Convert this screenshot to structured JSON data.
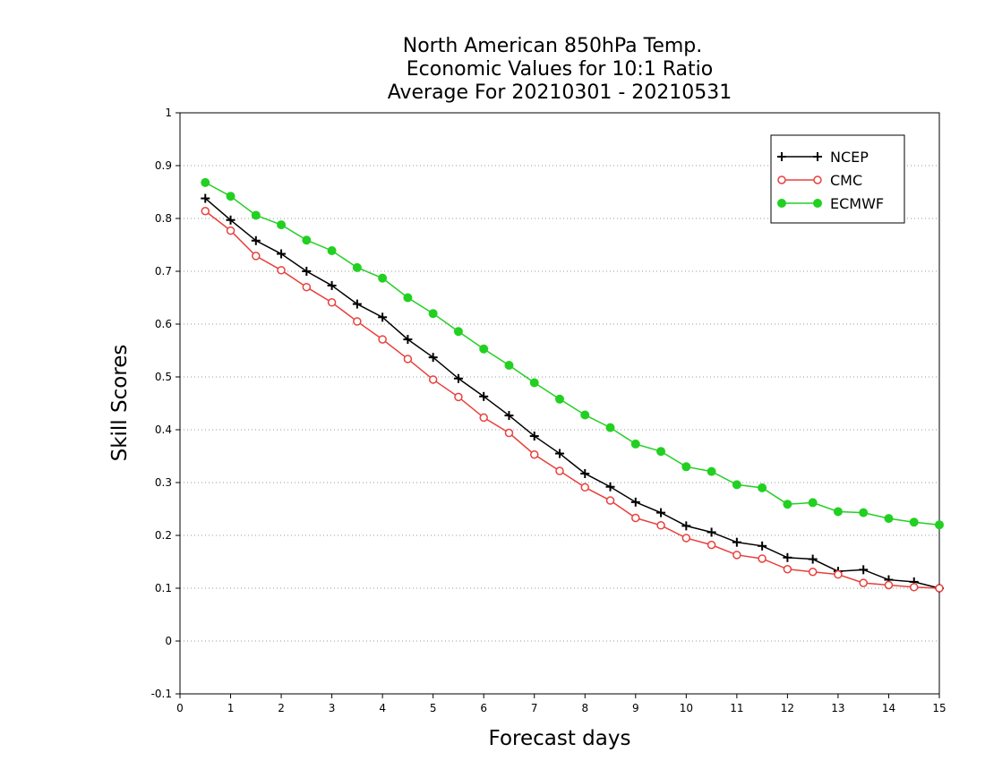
{
  "chart_data": {
    "type": "line",
    "title_lines": [
      "North American 850hPa Temp.",
      "Economic Values for 10:1 Ratio",
      "Average For 20210301 - 20210531"
    ],
    "xlabel": "Forecast days",
    "ylabel": "Skill Scores",
    "xlim": [
      0,
      15
    ],
    "ylim": [
      -0.1,
      1
    ],
    "xticks": [
      0,
      1,
      2,
      3,
      4,
      5,
      6,
      7,
      8,
      9,
      10,
      11,
      12,
      13,
      14,
      15
    ],
    "yticks": [
      -0.1,
      0,
      0.1,
      0.2,
      0.3,
      0.4,
      0.5,
      0.6,
      0.7,
      0.8,
      0.9,
      1
    ],
    "ytick_labels": [
      "-0.1",
      "0",
      "0.1",
      "0.2",
      "0.3",
      "0.4",
      "0.5",
      "0.6",
      "0.7",
      "0.8",
      "0.9",
      "1"
    ],
    "grid": "horizontal dotted",
    "legend_position": "top-right",
    "x": [
      0.5,
      1,
      1.5,
      2,
      2.5,
      3,
      3.5,
      4,
      4.5,
      5,
      5.5,
      6,
      6.5,
      7,
      7.5,
      8,
      8.5,
      9,
      9.5,
      10,
      10.5,
      11,
      11.5,
      12,
      12.5,
      13,
      13.5,
      14,
      14.5,
      15
    ],
    "series": [
      {
        "name": "NCEP",
        "color": "#000000",
        "marker": "plus",
        "values": [
          0.838,
          0.797,
          0.758,
          0.733,
          0.7,
          0.673,
          0.638,
          0.613,
          0.571,
          0.537,
          0.497,
          0.463,
          0.427,
          0.388,
          0.355,
          0.317,
          0.292,
          0.263,
          0.243,
          0.218,
          0.206,
          0.187,
          0.18,
          0.158,
          0.155,
          0.132,
          0.135,
          0.116,
          0.112,
          0.1
        ]
      },
      {
        "name": "CMC",
        "color": "#e8403c",
        "marker": "open-circle",
        "values": [
          0.814,
          0.777,
          0.729,
          0.702,
          0.67,
          0.641,
          0.605,
          0.571,
          0.534,
          0.495,
          0.462,
          0.423,
          0.394,
          0.353,
          0.322,
          0.291,
          0.266,
          0.233,
          0.219,
          0.195,
          0.182,
          0.163,
          0.156,
          0.136,
          0.131,
          0.126,
          0.11,
          0.106,
          0.102,
          0.1
        ]
      },
      {
        "name": "ECMWF",
        "color": "#22d022",
        "marker": "filled-circle",
        "values": [
          0.868,
          0.842,
          0.806,
          0.788,
          0.759,
          0.739,
          0.707,
          0.687,
          0.65,
          0.62,
          0.586,
          0.553,
          0.522,
          0.489,
          0.458,
          0.428,
          0.404,
          0.373,
          0.359,
          0.33,
          0.321,
          0.296,
          0.29,
          0.259,
          0.262,
          0.245,
          0.243,
          0.232,
          0.225,
          0.22
        ]
      }
    ]
  }
}
